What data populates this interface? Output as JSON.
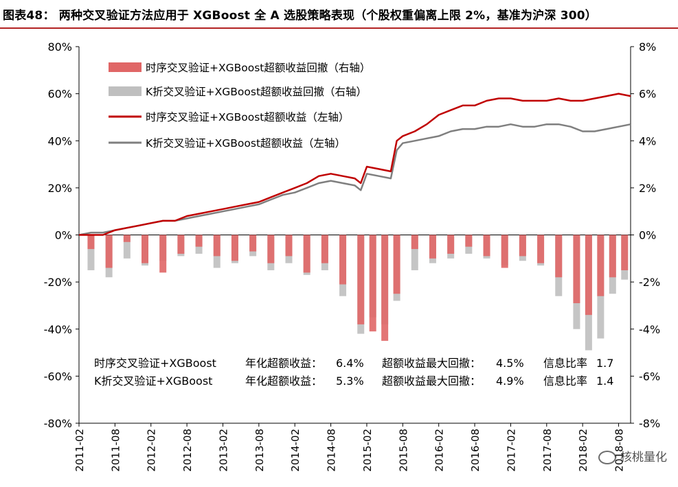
{
  "figure": {
    "title": "图表48： 两种交叉验证方法应用于 XGBoost 全 A 选股策略表现（个股权重偏离上限 2%，基准为沪深 300）",
    "watermark": "核桃量化"
  },
  "colors": {
    "ts_line": "#c00000",
    "k_line": "#7f7f7f",
    "ts_dd": "#e06666",
    "k_dd": "#bfbfbf",
    "title_rule": "#b22222"
  },
  "chart_data": {
    "type": "line",
    "x_tick_labels": [
      "2011-02",
      "2011-08",
      "2012-02",
      "2012-08",
      "2013-02",
      "2013-08",
      "2014-02",
      "2014-08",
      "2015-02",
      "2015-08",
      "2016-02",
      "2016-08",
      "2017-02",
      "2017-08",
      "2018-02",
      "2018-08"
    ],
    "x_range": [
      "2011-02",
      "2018-10"
    ],
    "y_left": {
      "ticks": [
        "-80%",
        "-60%",
        "-40%",
        "-20%",
        "0%",
        "20%",
        "40%",
        "60%",
        "80%"
      ],
      "range": [
        -80,
        80
      ],
      "unit": "%"
    },
    "y_right": {
      "ticks": [
        "-8%",
        "-6%",
        "-4%",
        "-2%",
        "0%",
        "2%",
        "4%",
        "6%",
        "8%"
      ],
      "range": [
        -8,
        8
      ],
      "unit": "%"
    },
    "legend": {
      "placement": "top-left",
      "items": [
        {
          "label": "时序交叉验证+XGBoost超额收益回撤（右轴）",
          "kind": "bar",
          "color_key": "ts_dd"
        },
        {
          "label": "K折交叉验证+XGBoost超额收益回撤（右轴）",
          "kind": "bar",
          "color_key": "k_dd"
        },
        {
          "label": "时序交叉验证+XGBoost超额收益（左轴）",
          "kind": "line",
          "color_key": "ts_line"
        },
        {
          "label": "K折交叉验证+XGBoost超额收益（左轴）",
          "kind": "line",
          "color_key": "k_line"
        }
      ]
    },
    "series": [
      {
        "name": "时序交叉验证+XGBoost超额收益（左轴）",
        "axis": "left",
        "kind": "line",
        "color_key": "ts_line",
        "x": [
          "2011-02",
          "2011-04",
          "2011-06",
          "2011-08",
          "2011-10",
          "2011-12",
          "2012-02",
          "2012-04",
          "2012-06",
          "2012-08",
          "2012-10",
          "2012-12",
          "2013-02",
          "2013-04",
          "2013-06",
          "2013-08",
          "2013-10",
          "2013-12",
          "2014-02",
          "2014-04",
          "2014-06",
          "2014-08",
          "2014-10",
          "2014-12",
          "2015-01",
          "2015-02",
          "2015-04",
          "2015-06",
          "2015-07",
          "2015-08",
          "2015-10",
          "2015-12",
          "2016-02",
          "2016-04",
          "2016-06",
          "2016-08",
          "2016-10",
          "2016-12",
          "2017-02",
          "2017-04",
          "2017-06",
          "2017-08",
          "2017-10",
          "2017-12",
          "2018-02",
          "2018-04",
          "2018-06",
          "2018-08",
          "2018-10"
        ],
        "y": [
          0,
          0,
          0,
          2,
          3,
          4,
          5,
          6,
          6,
          8,
          9,
          10,
          11,
          12,
          13,
          14,
          16,
          18,
          20,
          22,
          25,
          26,
          25,
          24,
          22,
          29,
          28,
          27,
          40,
          42,
          44,
          47,
          51,
          53,
          55,
          55,
          57,
          58,
          58,
          57,
          57,
          57,
          58,
          57,
          57,
          58,
          59,
          60,
          59
        ]
      },
      {
        "name": "K折交叉验证+XGBoost超额收益（左轴）",
        "axis": "left",
        "kind": "line",
        "color_key": "k_line",
        "x": [
          "2011-02",
          "2011-04",
          "2011-06",
          "2011-08",
          "2011-10",
          "2011-12",
          "2012-02",
          "2012-04",
          "2012-06",
          "2012-08",
          "2012-10",
          "2012-12",
          "2013-02",
          "2013-04",
          "2013-06",
          "2013-08",
          "2013-10",
          "2013-12",
          "2014-02",
          "2014-04",
          "2014-06",
          "2014-08",
          "2014-10",
          "2014-12",
          "2015-01",
          "2015-02",
          "2015-04",
          "2015-06",
          "2015-07",
          "2015-08",
          "2015-10",
          "2015-12",
          "2016-02",
          "2016-04",
          "2016-06",
          "2016-08",
          "2016-10",
          "2016-12",
          "2017-02",
          "2017-04",
          "2017-06",
          "2017-08",
          "2017-10",
          "2017-12",
          "2018-02",
          "2018-04",
          "2018-06",
          "2018-08",
          "2018-10"
        ],
        "y": [
          0,
          1,
          1,
          2,
          3,
          4,
          5,
          6,
          6,
          7,
          8,
          9,
          10,
          11,
          12,
          13,
          15,
          17,
          18,
          20,
          22,
          23,
          22,
          21,
          19,
          26,
          25,
          24,
          36,
          39,
          40,
          41,
          42,
          44,
          45,
          45,
          46,
          46,
          47,
          46,
          46,
          47,
          47,
          46,
          44,
          44,
          45,
          46,
          47
        ]
      },
      {
        "name": "时序交叉验证+XGBoost超额收益回撤（右轴）",
        "axis": "right",
        "kind": "bar",
        "color_key": "ts_dd",
        "x": [
          "2011-04",
          "2011-07",
          "2011-10",
          "2012-01",
          "2012-04",
          "2012-07",
          "2012-10",
          "2013-01",
          "2013-04",
          "2013-07",
          "2013-10",
          "2014-01",
          "2014-04",
          "2014-07",
          "2014-10",
          "2015-01",
          "2015-03",
          "2015-05",
          "2015-07",
          "2015-10",
          "2016-01",
          "2016-04",
          "2016-07",
          "2016-10",
          "2017-01",
          "2017-04",
          "2017-07",
          "2017-10",
          "2018-01",
          "2018-03",
          "2018-05",
          "2018-07",
          "2018-09"
        ],
        "y": [
          -0.6,
          -1.4,
          -0.3,
          -1.2,
          -1.6,
          -0.8,
          -0.5,
          -0.9,
          -1.1,
          -0.7,
          -1.2,
          -0.9,
          -1.6,
          -1.2,
          -2.1,
          -3.8,
          -4.1,
          -4.5,
          -2.5,
          -0.6,
          -1.0,
          -0.8,
          -0.5,
          -0.9,
          -1.4,
          -0.9,
          -1.2,
          -1.8,
          -2.9,
          -3.4,
          -2.6,
          -1.8,
          -1.5
        ]
      },
      {
        "name": "K折交叉验证+XGBoost超额收益回撤（右轴）",
        "axis": "right",
        "kind": "bar",
        "color_key": "k_dd",
        "x": [
          "2011-04",
          "2011-07",
          "2011-10",
          "2012-01",
          "2012-04",
          "2012-07",
          "2012-10",
          "2013-01",
          "2013-04",
          "2013-07",
          "2013-10",
          "2014-01",
          "2014-04",
          "2014-07",
          "2014-10",
          "2015-01",
          "2015-03",
          "2015-05",
          "2015-07",
          "2015-10",
          "2016-01",
          "2016-04",
          "2016-07",
          "2016-10",
          "2017-01",
          "2017-04",
          "2017-07",
          "2017-10",
          "2018-01",
          "2018-03",
          "2018-05",
          "2018-07",
          "2018-09"
        ],
        "y": [
          -1.5,
          -1.8,
          -1.0,
          -1.3,
          -1.1,
          -0.9,
          -0.8,
          -1.4,
          -1.2,
          -0.9,
          -1.5,
          -1.2,
          -1.7,
          -1.5,
          -2.6,
          -4.2,
          -3.5,
          -3.8,
          -2.8,
          -1.5,
          -1.2,
          -1.0,
          -0.8,
          -1.0,
          -1.3,
          -1.1,
          -1.3,
          -2.6,
          -4.0,
          -4.9,
          -4.4,
          -2.5,
          -1.9
        ]
      }
    ],
    "annotations": [
      {
        "strategy": "时序交叉验证+XGBoost",
        "ann_label": "年化超额收益：",
        "ann_value": "6.4%",
        "mdd_label": "超额收益最大回撤：",
        "mdd_value": "4.5%",
        "ir_label": "信息比率",
        "ir_value": "1.7"
      },
      {
        "strategy": "K折交叉验证+XGBoost",
        "ann_label": "年化超额收益：",
        "ann_value": "5.3%",
        "mdd_label": "超额收益最大回撤：",
        "mdd_value": "4.9%",
        "ir_label": "信息比率",
        "ir_value": "1.4"
      }
    ]
  }
}
